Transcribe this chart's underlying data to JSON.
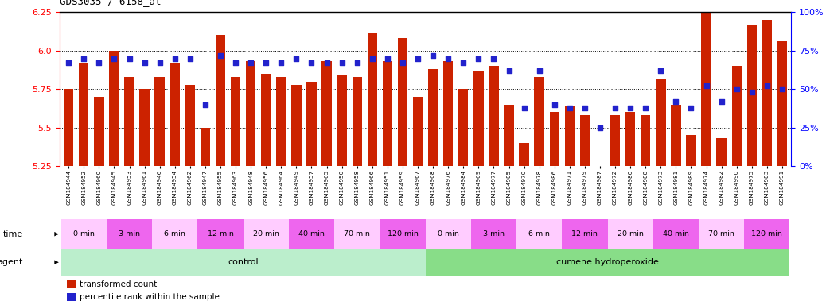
{
  "title": "GDS3035 / 6158_at",
  "samples": [
    "GSM184944",
    "GSM184952",
    "GSM184960",
    "GSM184945",
    "GSM184953",
    "GSM184961",
    "GSM184946",
    "GSM184954",
    "GSM184962",
    "GSM184947",
    "GSM184955",
    "GSM184963",
    "GSM184948",
    "GSM184956",
    "GSM184964",
    "GSM184949",
    "GSM184957",
    "GSM184965",
    "GSM184950",
    "GSM184958",
    "GSM184966",
    "GSM184951",
    "GSM184959",
    "GSM184967",
    "GSM184968",
    "GSM184976",
    "GSM184984",
    "GSM184969",
    "GSM184977",
    "GSM184985",
    "GSM184970",
    "GSM184978",
    "GSM184986",
    "GSM184971",
    "GSM184979",
    "GSM184987",
    "GSM184972",
    "GSM184980",
    "GSM184988",
    "GSM184973",
    "GSM184981",
    "GSM184989",
    "GSM184974",
    "GSM184982",
    "GSM184990",
    "GSM184975",
    "GSM184983",
    "GSM184991"
  ],
  "bar_values": [
    5.75,
    5.92,
    5.7,
    6.0,
    5.83,
    5.75,
    5.83,
    5.92,
    5.78,
    5.5,
    6.1,
    5.83,
    5.93,
    5.85,
    5.83,
    5.78,
    5.8,
    5.93,
    5.84,
    5.83,
    6.12,
    5.93,
    6.08,
    5.7,
    5.88,
    5.93,
    5.75,
    5.87,
    5.9,
    5.65,
    5.4,
    5.83,
    5.6,
    5.64,
    5.58,
    5.2,
    5.58,
    5.6,
    5.58,
    5.82,
    5.65,
    5.45,
    6.26,
    5.43,
    5.9,
    6.17,
    6.2,
    6.06
  ],
  "percentile_values": [
    67,
    70,
    67,
    70,
    70,
    67,
    67,
    70,
    70,
    40,
    72,
    67,
    67,
    67,
    67,
    70,
    67,
    67,
    67,
    67,
    70,
    70,
    67,
    70,
    72,
    70,
    67,
    70,
    70,
    62,
    38,
    62,
    40,
    38,
    38,
    25,
    38,
    38,
    38,
    62,
    42,
    38,
    52,
    42,
    50,
    48,
    52,
    50
  ],
  "ylim": [
    5.25,
    6.25
  ],
  "yticks": [
    5.25,
    5.5,
    5.75,
    6.0,
    6.25
  ],
  "right_yticks": [
    0,
    25,
    50,
    75,
    100
  ],
  "bar_color": "#CC2200",
  "dot_color": "#2222CC",
  "control_color": "#BBEECC",
  "treatment_color": "#88DD88",
  "time_color_light": "#FFCCFF",
  "time_color_dark": "#EE66EE",
  "control_label": "control",
  "treatment_label": "cumene hydroperoxide",
  "agent_label": "agent",
  "time_label": "time",
  "time_groups": [
    "0 min",
    "3 min",
    "6 min",
    "12 min",
    "20 min",
    "40 min",
    "70 min",
    "120 min"
  ],
  "control_count": 24,
  "treatment_count": 24,
  "samples_per_time": 3,
  "legend_bar": "transformed count",
  "legend_dot": "percentile rank within the sample"
}
